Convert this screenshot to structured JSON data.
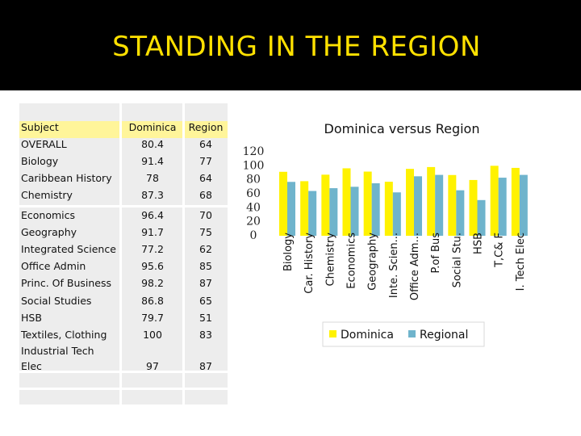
{
  "slide": {
    "title": "STANDING IN THE REGION"
  },
  "table": {
    "headers": [
      "Subject",
      "Dominica",
      "Region"
    ],
    "rows": [
      {
        "subject": "OVERALL",
        "dominica": "80.4",
        "region": "64"
      },
      {
        "subject": "Biology",
        "dominica": "91.4",
        "region": "77"
      },
      {
        "subject": "Caribbean History",
        "dominica": "78",
        "region": "64"
      },
      {
        "subject": "Chemistry",
        "dominica": "87.3",
        "region": "68"
      },
      {
        "subject": "Economics",
        "dominica": "96.4",
        "region": "70"
      },
      {
        "subject": "Geography",
        "dominica": "91.7",
        "region": "75"
      },
      {
        "subject": "Integrated Science",
        "dominica": "77.2",
        "region": "62"
      },
      {
        "subject": "Office Admin",
        "dominica": "95.6",
        "region": "85"
      },
      {
        "subject": "Princ. Of Business",
        "dominica": "98.2",
        "region": "87"
      },
      {
        "subject": "Social Studies",
        "dominica": "86.8",
        "region": "65"
      },
      {
        "subject": "HSB",
        "dominica": "79.7",
        "region": "51"
      },
      {
        "subject": "Textiles, Clothing",
        "dominica": "100",
        "region": "83"
      },
      {
        "subject": "Industrial Tech Elec",
        "dominica": "97",
        "region": "87"
      }
    ]
  },
  "chart_data": {
    "type": "bar",
    "title": "Dominica versus Region",
    "categories": [
      "Biology",
      "Car. History",
      "Chemistry",
      "Economics",
      "Geography",
      "Inte. Scien...",
      "Office Adm...",
      "P.of Bus",
      "Social Stu.",
      "HSB",
      "T,C& F",
      "I. Tech Elec"
    ],
    "series": [
      {
        "name": "Dominica",
        "values": [
          91.4,
          78,
          87.3,
          96.4,
          91.7,
          77.2,
          95.6,
          98.2,
          86.8,
          79.7,
          100,
          97
        ]
      },
      {
        "name": "Regional",
        "values": [
          77,
          64,
          68,
          70,
          75,
          62,
          85,
          87,
          65,
          51,
          83,
          87
        ]
      }
    ],
    "yticks": [
      "120",
      "100",
      "80",
      "60",
      "40",
      "20",
      "0"
    ],
    "ylim": [
      0,
      120
    ],
    "xlabel": "",
    "ylabel": "",
    "legend_position": "bottom",
    "colors": {
      "Dominica": "#FFF200",
      "Regional": "#6FB4CC"
    }
  },
  "colors": {
    "title": "#FFE100",
    "header_bg": "#000000",
    "table_bg": "#EDEDED",
    "table_highlight": "#FFF59A"
  }
}
